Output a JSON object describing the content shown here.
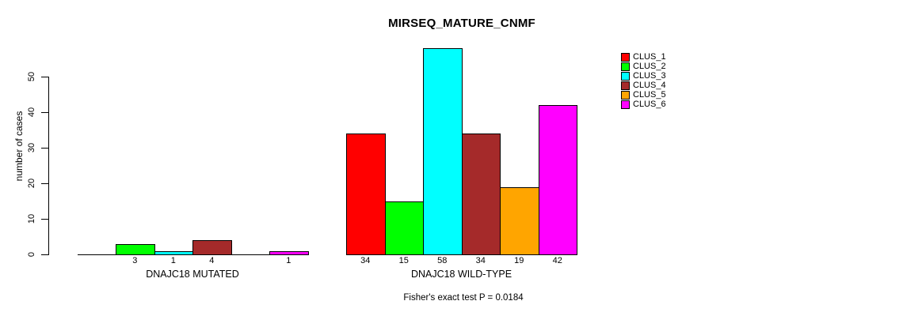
{
  "chart_data": {
    "type": "bar",
    "title": "MIRSEQ_MATURE_CNMF",
    "ylabel": "number of cases",
    "xlabel": "",
    "yticks": [
      0,
      10,
      20,
      30,
      40,
      50
    ],
    "ylim": [
      0,
      58
    ],
    "grid": false,
    "legend_position": "top-right",
    "legend_title": "",
    "categories": [
      "DNAJC18 MUTATED",
      "DNAJC18 WILD-TYPE"
    ],
    "series": [
      {
        "name": "CLUS_1",
        "color": "#FF0000",
        "values": [
          0,
          34
        ]
      },
      {
        "name": "CLUS_2",
        "color": "#00FF00",
        "values": [
          3,
          15
        ]
      },
      {
        "name": "CLUS_3",
        "color": "#00FFFF",
        "values": [
          1,
          58
        ]
      },
      {
        "name": "CLUS_4",
        "color": "#A52A2A",
        "values": [
          4,
          34
        ]
      },
      {
        "name": "CLUS_5",
        "color": "#FFA500",
        "values": [
          0,
          19
        ]
      },
      {
        "name": "CLUS_6",
        "color": "#FF00FF",
        "values": [
          1,
          42
        ]
      }
    ],
    "value_label_rule": "bar count shown under each bar only when value > 0",
    "annotation": "Fisher's exact test P = 0.0184",
    "axis_color": "#000000",
    "background_color": "#FFFFFF"
  }
}
